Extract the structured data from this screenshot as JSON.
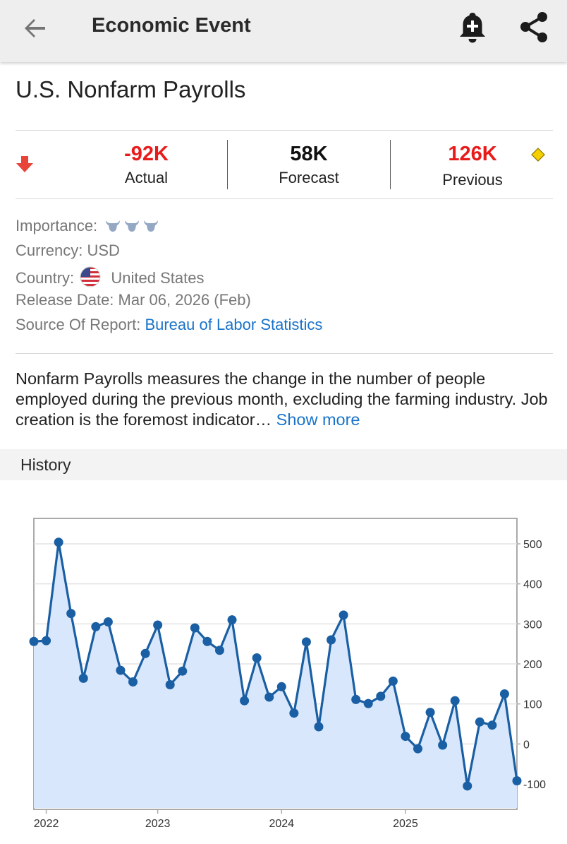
{
  "header": {
    "title": "Economic Event",
    "back_icon": "arrow-back-icon",
    "bell_icon": "bell-add-icon",
    "share_icon": "share-icon"
  },
  "event": {
    "title": "U.S. Nonfarm Payrolls",
    "trend_icon": "arrow-down-icon",
    "actual": {
      "value": "-92K",
      "label": "Actual",
      "color": "#e81b1b"
    },
    "forecast": {
      "value": "58K",
      "label": "Forecast",
      "color": "#111111"
    },
    "previous": {
      "value": "126K",
      "label": "Previous",
      "color": "#e81b1b"
    },
    "revision_icon": "diamond-icon"
  },
  "info": {
    "importance_label": "Importance:",
    "importance_icons": [
      "bull-icon",
      "bull-icon",
      "bull-icon"
    ],
    "currency_label": "Currency:",
    "currency_value": "USD",
    "country_label": "Country:",
    "country_flag": "us-flag-icon",
    "country_value": "United States",
    "release_label": "Release Date:",
    "release_value": "Mar 06, 2026 (Feb)",
    "source_label": "Source Of Report:",
    "source_value": "Bureau of Labor Statistics"
  },
  "description": {
    "text": "Nonfarm Payrolls measures the change in the number of people employed during the previous month, excluding the farming industry. Job creation is the foremost indicator…",
    "more": "Show more"
  },
  "history": {
    "label": "History"
  },
  "chart_data": {
    "type": "area",
    "title": "",
    "xlabel": "",
    "ylabel": "",
    "x_ticks": [
      "2022",
      "2023",
      "2024",
      "2025"
    ],
    "y_ticks": [
      500,
      400,
      300,
      200,
      100,
      0,
      -100
    ],
    "ylim": [
      -160,
      560
    ],
    "y_axis_side": "right",
    "grid": true,
    "line_color": "#1a5fa3",
    "fill_color": "#d8e7fb",
    "series": [
      {
        "values": [
          256,
          258,
          504,
          326,
          164,
          293,
          305,
          184,
          155,
          226,
          297,
          148,
          182,
          290,
          256,
          234,
          310,
          108,
          215,
          117,
          143,
          77,
          255,
          43,
          260,
          322,
          111,
          101,
          119,
          157,
          19,
          -12,
          79,
          -3,
          108,
          -105,
          55,
          47,
          125,
          -92
        ]
      }
    ]
  }
}
